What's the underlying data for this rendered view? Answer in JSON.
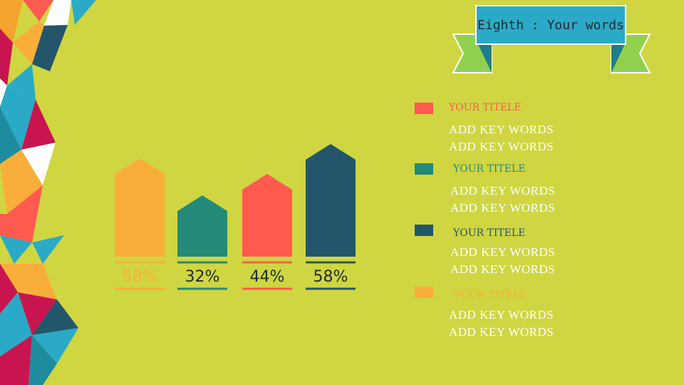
{
  "header": {
    "title": "Eighth : Your words"
  },
  "colors": {
    "background": "#cfd642",
    "orange": "#f9ae3b",
    "teal": "#238a78",
    "coral": "#ff5a4f",
    "navy": "#24566b",
    "ribbon": "#2aaac7",
    "green": "#8fd14f"
  },
  "chart_data": {
    "type": "bar",
    "categories": [
      "58%",
      "32%",
      "44%",
      "58%"
    ],
    "values": [
      58,
      32,
      44,
      58
    ],
    "bar_shape_heights": [
      138,
      86,
      116,
      158
    ],
    "colors": [
      "#f9ae3b",
      "#238a78",
      "#ff5a4f",
      "#24566b"
    ],
    "title": "",
    "xlabel": "",
    "ylabel": ""
  },
  "legend": [
    {
      "title": "YOUR TITELE",
      "color": "#ff5a4f",
      "lines": [
        "ADD  KEY WORDS",
        "ADD  KEY WORDS"
      ]
    },
    {
      "title": "YOUR TITELE",
      "color": "#238a78",
      "lines": [
        "ADD  KEY WORDS",
        "ADD  KEY WORDS"
      ]
    },
    {
      "title": "YOUR TITELE",
      "color": "#24566b",
      "lines": [
        "ADD  KEY WORDS",
        "ADD  KEY WORDS"
      ]
    },
    {
      "title": "YOUR TITELE",
      "color": "#f9ae3b",
      "lines": [
        "ADD  KEY WORDS",
        "ADD  KEY WORDS"
      ]
    }
  ]
}
